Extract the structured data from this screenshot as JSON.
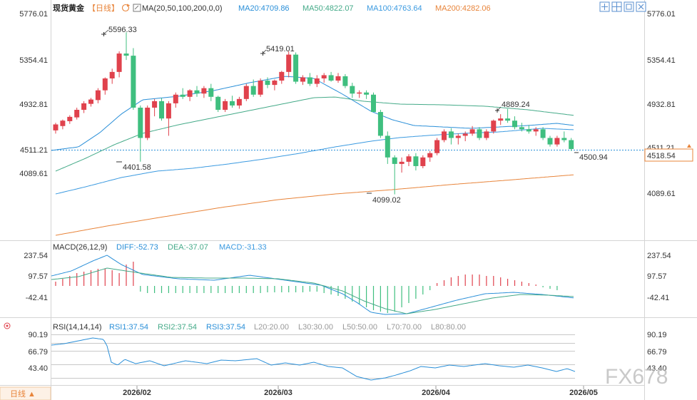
{
  "header": {
    "title": "现货黄金",
    "period_label": "【日线】",
    "ma_label": "MA(20,50,100,200,0,0)",
    "ma_values": [
      {
        "text": "MA20:4709.86",
        "color": "#2a8fd8"
      },
      {
        "text": "MA50:4822.07",
        "color": "#44aa88"
      },
      {
        "text": "MA100:4763.64",
        "color": "#3b9ae0"
      },
      {
        "text": "MA200:4282.06",
        "color": "#e8843a"
      }
    ]
  },
  "toolbar": {
    "icons": [
      "move-icon",
      "grid-icon",
      "restore-icon",
      "close-icon"
    ]
  },
  "macd": {
    "label": "MACD(26,12,9)",
    "values": [
      {
        "text": "DIFF:-52.73",
        "color": "#2a8fd8"
      },
      {
        "text": "DEA:-37.07",
        "color": "#44aa88"
      },
      {
        "text": "MACD:-31.33",
        "color": "#3b9ae0"
      }
    ]
  },
  "rsi": {
    "label": "RSI(14,14,14)",
    "values": [
      {
        "text": "RSI1:37.54",
        "color": "#2a8fd8"
      },
      {
        "text": "RSI2:37.54",
        "color": "#44aa88"
      },
      {
        "text": "RSI3:37.54",
        "color": "#2a8fd8"
      },
      {
        "text": "L20:20.00",
        "color": "#999999"
      },
      {
        "text": "L30:30.00",
        "color": "#999999"
      },
      {
        "text": "L50:50.00",
        "color": "#999999"
      },
      {
        "text": "L70:70.00",
        "color": "#999999"
      },
      {
        "text": "L80:80.00",
        "color": "#999999"
      }
    ]
  },
  "period_button": "日线 ▲",
  "current_price": "4518.54",
  "watermark": "FX678",
  "colors": {
    "up": "#e0424d",
    "down": "#3fbf7f",
    "ma20": "#2a8fd8",
    "ma50": "#44aa88",
    "ma100": "#3b9ae0",
    "ma200": "#e8843a"
  },
  "chart_data": [
    {
      "type": "candlestick",
      "name": "price",
      "y_ticks": [
        "5776.01",
        "5354.41",
        "4932.81",
        "4511.21",
        "4089.61"
      ],
      "x_ticks": [
        "2026/02",
        "2026/03",
        "2026/04",
        "2026/05"
      ],
      "annotations": [
        {
          "text": "5596.33",
          "kind": "high"
        },
        {
          "text": "4401.58",
          "kind": "low"
        },
        {
          "text": "5419.01",
          "kind": "high"
        },
        {
          "text": "4099.02",
          "kind": "low"
        },
        {
          "text": "4889.24",
          "kind": "high"
        },
        {
          "text": "4500.94",
          "kind": "low"
        }
      ],
      "last_close": 4518.54,
      "ma200_last": 4282.06
    },
    {
      "type": "bar",
      "name": "MACD",
      "y_ticks": [
        "237.54",
        "97.57",
        "-42.41"
      ],
      "values": {
        "DIFF": -52.73,
        "DEA": -37.07,
        "MACD": -31.33
      }
    },
    {
      "type": "line",
      "name": "RSI",
      "y_ticks": [
        "90.19",
        "66.79",
        "43.40"
      ],
      "values": {
        "RSI1": 37.54,
        "RSI2": 37.54,
        "RSI3": 37.54
      }
    }
  ]
}
